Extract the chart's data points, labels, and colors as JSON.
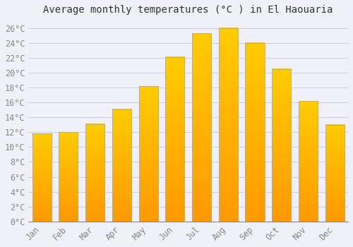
{
  "title": "Average monthly temperatures (°C ) in El Haouaria",
  "months": [
    "Jan",
    "Feb",
    "Mar",
    "Apr",
    "May",
    "Jun",
    "Jul",
    "Aug",
    "Sep",
    "Oct",
    "Nov",
    "Dec"
  ],
  "temperatures": [
    11.8,
    12.0,
    13.1,
    15.1,
    18.2,
    22.1,
    25.3,
    26.0,
    24.0,
    20.5,
    16.2,
    13.0
  ],
  "bar_color_top": "#FFCC00",
  "bar_color_bottom": "#FF9900",
  "bar_edge_color": "#AAAAAA",
  "background_color": "#F0F0F8",
  "plot_bg_color": "#F0F0F8",
  "grid_color": "#CCCCDD",
  "ylabel_color": "#888888",
  "xlabel_color": "#888888",
  "title_color": "#333333",
  "ylim": [
    0,
    27
  ],
  "yticks": [
    0,
    2,
    4,
    6,
    8,
    10,
    12,
    14,
    16,
    18,
    20,
    22,
    24,
    26
  ],
  "title_fontsize": 10,
  "tick_fontsize": 8.5
}
